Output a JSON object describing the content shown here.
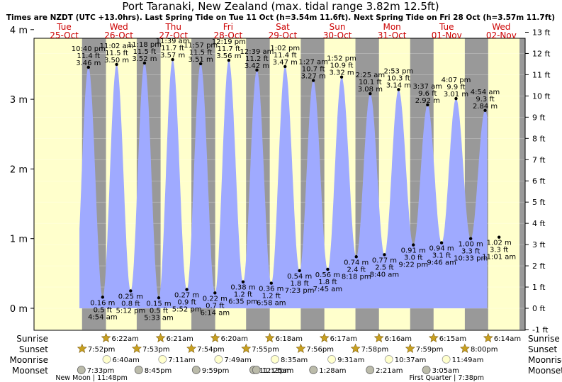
{
  "title": "Port Taranaki, New Zealand (max. tidal range 3.82m 12.5ft)",
  "subtitle": "Times are NZDT (UTC +13.0hrs). Last Spring Tide on Tue 11 Oct (h=3.54m 11.6ft). Next Spring Tide on Fri 28 Oct (h=3.57m 11.7ft)",
  "colors": {
    "day": "#ffffcc",
    "night": "#999999",
    "water": "#9faaff",
    "day_label": "#cc0000"
  },
  "days": [
    {
      "name": "Tue",
      "date": "25-Oct"
    },
    {
      "name": "Wed",
      "date": "26-Oct"
    },
    {
      "name": "Thu",
      "date": "27-Oct"
    },
    {
      "name": "Fri",
      "date": "28-Oct"
    },
    {
      "name": "Sat",
      "date": "29-Oct"
    },
    {
      "name": "Sun",
      "date": "30-Oct"
    },
    {
      "name": "Mon",
      "date": "31-Oct"
    },
    {
      "name": "Tue",
      "date": "01-Nov"
    },
    {
      "name": "Wed",
      "date": "02-Nov"
    }
  ],
  "chart_data": {
    "type": "area",
    "x_unit": "days from 25-Oct 00:00 NZDT",
    "xlim": [
      0,
      8.9
    ],
    "ylim_m": [
      -0.3,
      4.25
    ],
    "left_axis": {
      "label": "m",
      "ticks": [
        "0 m",
        "1 m",
        "2 m",
        "3 m",
        "4 m"
      ]
    },
    "right_axis": {
      "label": "ft",
      "ticks": [
        "-1 ft",
        "0 ft",
        "1 ft",
        "2 ft",
        "3 ft",
        "4 ft",
        "5 ft",
        "6 ft",
        "7 ft",
        "8 ft",
        "9 ft",
        "10 ft",
        "11 ft",
        "12 ft",
        "13 ft"
      ]
    },
    "high_tides": [
      {
        "time": "10:40 pm",
        "h_m": 3.46,
        "h_ft": "11.4 ft",
        "label_m": "3.46 m"
      },
      {
        "time": "11:02 am",
        "h_m": 3.5,
        "h_ft": "11.5 ft",
        "label_m": "3.50 m"
      },
      {
        "time": "11:18 pm",
        "h_m": 3.52,
        "h_ft": "11.5 ft",
        "label_m": "3.52 m"
      },
      {
        "time": "11:39 am",
        "h_m": 3.57,
        "h_ft": "11.7 ft",
        "label_m": "3.57 m"
      },
      {
        "time": "11:57 pm",
        "h_m": 3.51,
        "h_ft": "11.5 ft",
        "label_m": "3.51 m"
      },
      {
        "time": "12:19 pm",
        "h_m": 3.56,
        "h_ft": "11.7 ft",
        "label_m": "3.56 m"
      },
      {
        "time": "12:39 am",
        "h_m": 3.42,
        "h_ft": "11.2 ft",
        "label_m": "3.42 m"
      },
      {
        "time": "1:02 pm",
        "h_m": 3.47,
        "h_ft": "11.4 ft",
        "label_m": "3.47 m"
      },
      {
        "time": "1:27 am",
        "h_m": 3.27,
        "h_ft": "10.7 ft",
        "label_m": "3.27 m"
      },
      {
        "time": "1:52 pm",
        "h_m": 3.32,
        "h_ft": "10.9 ft",
        "label_m": "3.32 m"
      },
      {
        "time": "2:25 am",
        "h_m": 3.08,
        "h_ft": "10.1 ft",
        "label_m": "3.08 m"
      },
      {
        "time": "2:53 pm",
        "h_m": 3.14,
        "h_ft": "10.3 ft",
        "label_m": "3.14 m"
      },
      {
        "time": "3:37 am",
        "h_m": 2.92,
        "h_ft": "9.6 ft",
        "label_m": "2.92 m"
      },
      {
        "time": "4:07 pm",
        "h_m": 3.01,
        "h_ft": "9.9 ft",
        "label_m": "3.01 m"
      },
      {
        "time": "4:54 am",
        "h_m": 2.84,
        "h_ft": "9.3 ft",
        "label_m": "2.84 m"
      }
    ],
    "low_tides": [
      {
        "time": "4:54 am",
        "h_m": 0.16,
        "h_ft": "0.5 ft",
        "label_m": "0.16 m"
      },
      {
        "time": "5:12 pm",
        "h_m": 0.25,
        "h_ft": "0.8 ft",
        "label_m": "0.25 m"
      },
      {
        "time": "5:33 am",
        "h_m": 0.15,
        "h_ft": "0.5 ft",
        "label_m": "0.15 m"
      },
      {
        "time": "5:52 pm",
        "h_m": 0.27,
        "h_ft": "0.9 ft",
        "label_m": "0.27 m"
      },
      {
        "time": "6:14 am",
        "h_m": 0.22,
        "h_ft": "0.7 ft",
        "label_m": "0.22 m"
      },
      {
        "time": "6:35 pm",
        "h_m": 0.38,
        "h_ft": "1.2 ft",
        "label_m": "0.38 m"
      },
      {
        "time": "6:58 am",
        "h_m": 0.36,
        "h_ft": "1.2 ft",
        "label_m": "0.36 m"
      },
      {
        "time": "7:23 pm",
        "h_m": 0.54,
        "h_ft": "1.8 ft",
        "label_m": "0.54 m"
      },
      {
        "time": "7:45 am",
        "h_m": 0.56,
        "h_ft": "1.8 ft",
        "label_m": "0.56 m"
      },
      {
        "time": "8:18 pm",
        "h_m": 0.74,
        "h_ft": "2.4 ft",
        "label_m": "0.74 m"
      },
      {
        "time": "8:40 am",
        "h_m": 0.77,
        "h_ft": "2.5 ft",
        "label_m": "0.77 m"
      },
      {
        "time": "9:22 pm",
        "h_m": 0.91,
        "h_ft": "3.0 ft",
        "label_m": "0.91 m"
      },
      {
        "time": "9:46 am",
        "h_m": 0.94,
        "h_ft": "3.1 ft",
        "label_m": "0.94 m"
      },
      {
        "time": "10:33 pm",
        "h_m": 1.0,
        "h_ft": "3.3 ft",
        "label_m": "1.00 m"
      },
      {
        "time": "11:01 am",
        "h_m": 1.02,
        "h_ft": "3.3 ft",
        "label_m": "1.02 m"
      }
    ],
    "tide_days": [
      0,
      1,
      1,
      2,
      2,
      3,
      4,
      4,
      5,
      5,
      6,
      6,
      7,
      7,
      8
    ],
    "low_days": [
      1,
      1,
      2,
      2,
      3,
      3,
      4,
      4,
      5,
      5,
      6,
      6,
      7,
      7,
      8
    ],
    "sunrise": [
      "6:22am",
      "6:21am",
      "6:20am",
      "6:18am",
      "6:17am",
      "6:16am",
      "6:15am",
      "6:14am"
    ],
    "sunset": [
      "7:52pm",
      "7:53pm",
      "7:54pm",
      "7:55pm",
      "7:56pm",
      "7:58pm",
      "7:59pm",
      "8:00pm"
    ],
    "moonrise": [
      "6:40am",
      "7:11am",
      "7:49am",
      "8:35am",
      "9:31am",
      "10:37am",
      "11:49am"
    ],
    "moonset": [
      "7:33pm",
      "8:45pm",
      "9:59pm",
      "11:13pm",
      "12:25am",
      "1:28am",
      "2:21am",
      "3:05am"
    ],
    "moon_phases": [
      {
        "label": "New Moon | 11:48pm",
        "day": 0
      },
      {
        "label": "First Quarter | 7:38pm",
        "day": 7
      }
    ]
  },
  "row_labels": {
    "sunrise": "Sunrise",
    "sunset": "Sunset",
    "moonrise": "Moonrise",
    "moonset": "Moonset"
  }
}
